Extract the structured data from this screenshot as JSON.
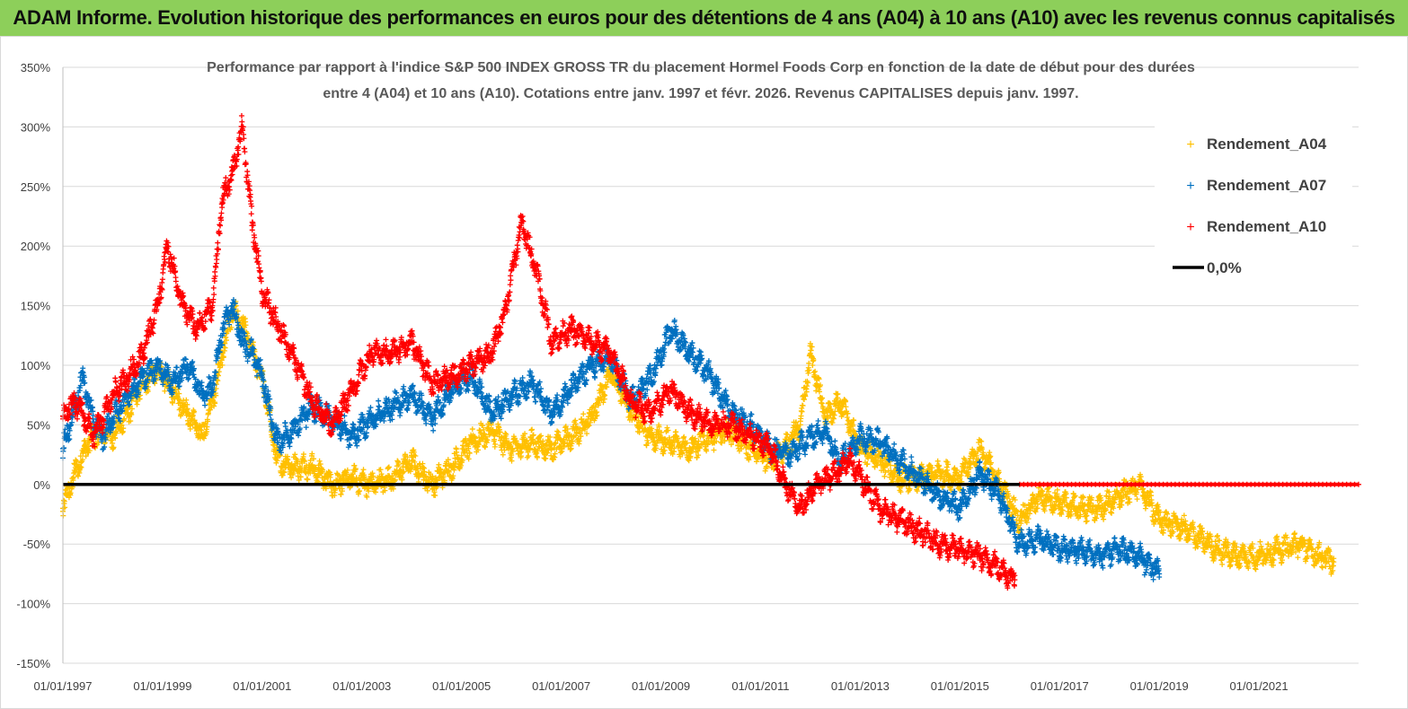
{
  "header": {
    "title": "ADAM Informe. Evolution historique des performances en euros pour des détentions de 4 ans (A04) à 10 ans (A10) avec les revenus connus capitalisés"
  },
  "colors": {
    "banner": "#8dcf5a",
    "a04": "#ffc000",
    "a07": "#0070c0",
    "a10": "#ff0000",
    "zero": "#000000",
    "grid": "#d9d9d9"
  },
  "chart_data": {
    "type": "scatter",
    "title_line1": "Performance par rapport à l'indice S&P 500 INDEX GROSS TR  du placement Hormel Foods Corp en fonction de la date de début pour des durées",
    "title_line2": "entre 4 (A04) et 10 ans (A10). Cotations entre janv. 1997 et févr. 2026. Revenus CAPITALISES depuis janv. 1997.",
    "xlabel": "",
    "ylabel": "",
    "xlim": [
      1997.0,
      2023.0
    ],
    "ylim": [
      -150,
      350
    ],
    "y_ticks": [
      350,
      300,
      250,
      200,
      150,
      100,
      50,
      0,
      -50,
      -100,
      -150
    ],
    "y_tick_labels": [
      "350%",
      "300%",
      "250%",
      "200%",
      "150%",
      "100%",
      "50%",
      "0%",
      "-50%",
      "-100%",
      "-150%"
    ],
    "x_ticks": [
      1997,
      1999,
      2001,
      2003,
      2005,
      2007,
      2009,
      2011,
      2013,
      2015,
      2017,
      2019,
      2021
    ],
    "x_tick_labels": [
      "01/01/1997",
      "01/01/1999",
      "01/01/2001",
      "01/01/2003",
      "01/01/2005",
      "01/01/2007",
      "01/01/2009",
      "01/01/2011",
      "01/01/2013",
      "01/01/2015",
      "01/01/2017",
      "01/01/2019",
      "01/01/2021"
    ],
    "legend": [
      "Rendement_A04",
      "Rendement_A07",
      "Rendement_A10",
      "0,0%"
    ],
    "legend_position": "top-right",
    "series": [
      {
        "name": "Rendement_A04",
        "color": "#ffc000",
        "x": [
          1997.0,
          1997.2,
          1997.5,
          1997.8,
          1998.0,
          1998.3,
          1998.6,
          1998.9,
          1999.2,
          1999.5,
          1999.8,
          2000.0,
          2000.2,
          2000.4,
          2000.6,
          2000.8,
          2001.0,
          2001.3,
          2001.6,
          2002.0,
          2002.4,
          2002.8,
          2003.2,
          2003.6,
          2004.0,
          2004.4,
          2004.8,
          2005.2,
          2005.6,
          2006.0,
          2006.4,
          2006.8,
          2007.2,
          2007.6,
          2008.0,
          2008.4,
          2008.8,
          2009.2,
          2009.6,
          2010.0,
          2010.4,
          2010.8,
          2011.2,
          2011.5,
          2011.8,
          2012.0,
          2012.3,
          2012.6,
          2013.0,
          2013.4,
          2013.8,
          2014.2,
          2014.6,
          2015.0,
          2015.4,
          2015.8,
          2016.2,
          2016.6,
          2017.0,
          2017.4,
          2017.8,
          2018.2,
          2018.6,
          2019.0,
          2019.4,
          2019.8,
          2020.2,
          2020.6,
          2021.0,
          2021.4,
          2021.8,
          2022.2,
          2022.5
        ],
        "y": [
          -20,
          5,
          35,
          45,
          40,
          60,
          85,
          95,
          80,
          60,
          40,
          70,
          110,
          145,
          135,
          110,
          90,
          20,
          15,
          15,
          0,
          5,
          0,
          5,
          20,
          0,
          15,
          35,
          45,
          30,
          35,
          30,
          40,
          55,
          95,
          60,
          40,
          35,
          30,
          40,
          45,
          30,
          20,
          30,
          50,
          110,
          55,
          70,
          30,
          20,
          5,
          5,
          10,
          5,
          30,
          0,
          -30,
          -10,
          -15,
          -20,
          -20,
          -10,
          0,
          -30,
          -35,
          -45,
          -55,
          -60,
          -60,
          -55,
          -50,
          -60,
          -65
        ]
      },
      {
        "name": "Rendement_A07",
        "color": "#0070c0",
        "x": [
          1997.0,
          1997.2,
          1997.4,
          1997.6,
          1997.8,
          1998.0,
          1998.3,
          1998.6,
          1998.9,
          1999.2,
          1999.5,
          1999.8,
          2000.0,
          2000.2,
          2000.4,
          2000.6,
          2000.8,
          2001.0,
          2001.3,
          2001.6,
          2002.0,
          2002.4,
          2002.8,
          2003.2,
          2003.6,
          2004.0,
          2004.4,
          2004.8,
          2005.2,
          2005.6,
          2006.0,
          2006.4,
          2006.8,
          2007.2,
          2007.6,
          2008.0,
          2008.4,
          2008.8,
          2009.2,
          2009.6,
          2010.0,
          2010.4,
          2010.8,
          2011.2,
          2011.6,
          2012.0,
          2012.3,
          2012.6,
          2013.0,
          2013.4,
          2013.8,
          2014.2,
          2014.6,
          2015.0,
          2015.4,
          2015.8,
          2016.2,
          2016.6,
          2017.0,
          2017.4,
          2017.8,
          2018.2,
          2018.6,
          2019.0
        ],
        "y": [
          30,
          60,
          90,
          55,
          40,
          55,
          75,
          90,
          100,
          85,
          100,
          75,
          80,
          130,
          150,
          120,
          110,
          90,
          35,
          45,
          65,
          55,
          40,
          55,
          65,
          75,
          55,
          80,
          90,
          60,
          75,
          85,
          60,
          80,
          100,
          105,
          70,
          90,
          130,
          110,
          90,
          60,
          50,
          30,
          25,
          40,
          45,
          20,
          40,
          35,
          20,
          5,
          -10,
          -20,
          10,
          -10,
          -50,
          -45,
          -55,
          -55,
          -60,
          -55,
          -60,
          -75
        ]
      },
      {
        "name": "Rendement_A10",
        "color": "#ff0000",
        "x": [
          1997.0,
          1997.2,
          1997.4,
          1997.6,
          1997.8,
          1998.0,
          1998.3,
          1998.6,
          1998.9,
          1999.1,
          1999.4,
          1999.7,
          2000.0,
          2000.2,
          2000.4,
          2000.6,
          2000.8,
          2001.0,
          2001.3,
          2001.6,
          2002.0,
          2002.4,
          2002.8,
          2003.2,
          2003.6,
          2004.0,
          2004.4,
          2004.8,
          2005.2,
          2005.6,
          2005.9,
          2006.2,
          2006.5,
          2006.8,
          2007.2,
          2007.6,
          2008.0,
          2008.4,
          2008.8,
          2009.2,
          2009.6,
          2010.0,
          2010.4,
          2010.8,
          2011.2,
          2011.5,
          2011.8,
          2012.1,
          2012.5,
          2012.8,
          2013.1,
          2013.4,
          2013.8,
          2014.2,
          2014.6,
          2015.0,
          2015.4,
          2015.8,
          2016.1
        ],
        "y": [
          55,
          70,
          60,
          40,
          55,
          75,
          90,
          110,
          150,
          200,
          150,
          130,
          150,
          240,
          260,
          300,
          220,
          160,
          135,
          110,
          70,
          50,
          80,
          110,
          110,
          120,
          85,
          90,
          100,
          110,
          150,
          220,
          180,
          120,
          130,
          120,
          110,
          70,
          60,
          80,
          60,
          50,
          50,
          40,
          30,
          0,
          -20,
          0,
          10,
          20,
          0,
          -20,
          -30,
          -40,
          -50,
          -55,
          -60,
          -70,
          -80
        ]
      },
      {
        "name": "A10_zero_floor",
        "color": "#ff0000",
        "x": [
          2016.2,
          2023.0
        ],
        "y": [
          0,
          0
        ]
      },
      {
        "name": "0,0%",
        "color": "#000000",
        "x": [
          1997.0,
          2016.2
        ],
        "y": [
          0,
          0
        ]
      }
    ]
  }
}
